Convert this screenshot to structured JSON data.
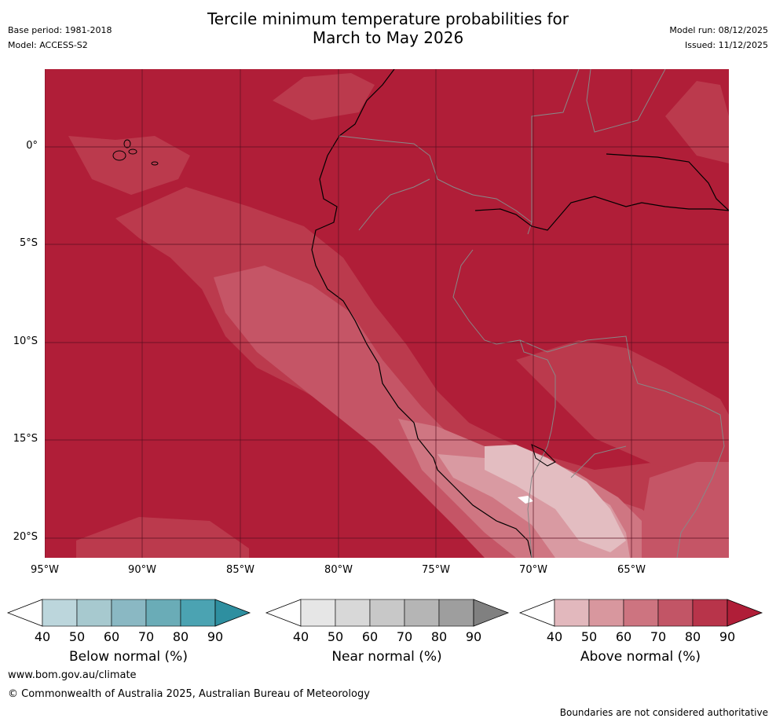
{
  "header": {
    "title_line1": "Tercile minimum temperature probabilities for",
    "title_line2": "March to May 2026",
    "base_period": "Base period: 1981-2018",
    "model": "Model: ACCESS-S2",
    "model_run": "Model run: 08/12/2025",
    "issued": "Issued: 11/12/2025"
  },
  "map": {
    "lat_labels": [
      "0°",
      "5°S",
      "10°S",
      "15°S",
      "20°S"
    ],
    "lon_labels": [
      "95°W",
      "90°W",
      "85°W",
      "80°W",
      "75°W",
      "70°W",
      "65°W"
    ],
    "dominant_category": "Above normal",
    "dominant_color": "#b01e38"
  },
  "colorbars": [
    {
      "label": "Below normal (%)",
      "ticks": [
        "40",
        "50",
        "60",
        "70",
        "80",
        "90"
      ],
      "colors": [
        "#ffffff",
        "#bcd6dc",
        "#a7c9cf",
        "#8ab8c3",
        "#6aacb7",
        "#4ba3b2",
        "#2e8fa0"
      ]
    },
    {
      "label": "Near normal (%)",
      "ticks": [
        "40",
        "50",
        "60",
        "70",
        "80",
        "90"
      ],
      "colors": [
        "#ffffff",
        "#e6e6e6",
        "#d8d8d8",
        "#c8c8c8",
        "#b5b5b5",
        "#9e9e9e",
        "#808080"
      ]
    },
    {
      "label": "Above normal (%)",
      "ticks": [
        "40",
        "50",
        "60",
        "70",
        "80",
        "90"
      ],
      "colors": [
        "#ffffff",
        "#e2b8bd",
        "#d8979e",
        "#cd7480",
        "#c25566",
        "#b8344a",
        "#b01e38"
      ]
    }
  ],
  "footer": {
    "url": "www.bom.gov.au/climate",
    "copyright": "© Commonwealth of Australia 2025, Australian Bureau of Meteorology",
    "disclaimer": "Boundaries are not considered authoritative"
  }
}
